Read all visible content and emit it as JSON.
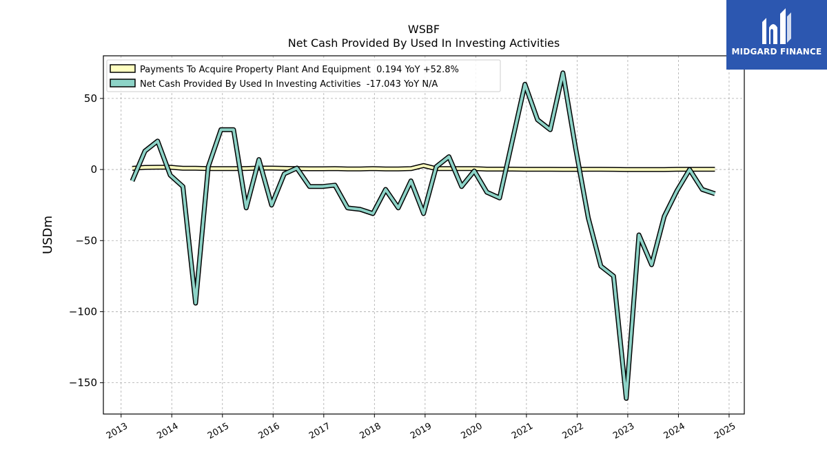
{
  "chart_data": {
    "type": "line",
    "title": "WSBF",
    "subtitle": "Net Cash Provided By Used In Investing Activities",
    "ylabel": "USDm",
    "xlabel": "",
    "xlim": [
      2012.65,
      2025.3
    ],
    "ylim": [
      -172,
      80
    ],
    "x_ticks": [
      2013,
      2014,
      2015,
      2016,
      2017,
      2018,
      2019,
      2020,
      2021,
      2022,
      2023,
      2024,
      2025
    ],
    "y_ticks": [
      -150,
      -100,
      -50,
      0,
      50
    ],
    "y_tick_labels": [
      "−150",
      "−100",
      "−50",
      "0",
      "50"
    ],
    "grid": true,
    "legend_position": "top-left",
    "series": [
      {
        "name": "Payments To Acquire Property Plant And Equipment  0.194 YoY +52.8%",
        "color": "#ffffc0",
        "x": [
          2013.22,
          2013.47,
          2013.72,
          2013.97,
          2014.22,
          2014.47,
          2014.72,
          2014.97,
          2015.22,
          2015.47,
          2015.72,
          2015.97,
          2016.22,
          2016.47,
          2016.72,
          2016.97,
          2017.22,
          2017.47,
          2017.72,
          2017.97,
          2018.22,
          2018.47,
          2018.72,
          2018.97,
          2019.22,
          2019.47,
          2019.72,
          2019.97,
          2020.22,
          2020.47,
          2020.72,
          2020.97,
          2021.22,
          2021.47,
          2021.72,
          2021.97,
          2022.22,
          2022.47,
          2022.72,
          2022.97,
          2023.22,
          2023.47,
          2023.72,
          2023.97,
          2024.22,
          2024.47,
          2024.72
        ],
        "values": [
          0.8,
          1.5,
          1.6,
          1.6,
          0.9,
          0.9,
          0.6,
          0.6,
          0.6,
          0.7,
          1.0,
          1.0,
          0.8,
          0.6,
          0.5,
          0.5,
          0.6,
          0.4,
          0.4,
          0.6,
          0.4,
          0.4,
          0.6,
          2.8,
          0.6,
          0.6,
          0.6,
          0.6,
          0.3,
          0.3,
          0.3,
          0.2,
          0.2,
          0.2,
          0.1,
          0.1,
          0.2,
          0.2,
          0.1,
          0.0,
          0.0,
          0.0,
          0.0,
          0.2,
          0.2,
          0.2,
          0.194
        ]
      },
      {
        "name": "Net Cash Provided By Used In Investing Activities  -17.043 YoY N/A",
        "color": "#8dd3c7",
        "x": [
          2013.22,
          2013.47,
          2013.72,
          2013.97,
          2014.22,
          2014.47,
          2014.72,
          2014.97,
          2015.22,
          2015.47,
          2015.72,
          2015.97,
          2016.22,
          2016.47,
          2016.72,
          2016.97,
          2017.22,
          2017.47,
          2017.72,
          2017.97,
          2018.22,
          2018.47,
          2018.72,
          2018.97,
          2019.22,
          2019.47,
          2019.72,
          2019.97,
          2020.22,
          2020.47,
          2020.72,
          2020.97,
          2021.22,
          2021.47,
          2021.72,
          2021.97,
          2022.22,
          2022.47,
          2022.72,
          2022.97,
          2023.22,
          2023.47,
          2023.72,
          2023.97,
          2024.22,
          2024.47,
          2024.72
        ],
        "values": [
          -8,
          13,
          20,
          -4,
          -12,
          -94,
          2,
          28,
          28,
          -27,
          7,
          -25,
          -3,
          1,
          -12,
          -12,
          -11,
          -27,
          -28,
          -31,
          -14,
          -27,
          -8,
          -31,
          2,
          9,
          -12,
          -1,
          -16,
          -20,
          20,
          60,
          35,
          28,
          68,
          15,
          -34,
          -68,
          -75,
          -161,
          -46,
          -67,
          -33,
          -15,
          0,
          -14,
          -17.043
        ]
      }
    ]
  },
  "brand": {
    "name": "MIDGARD FINANCE",
    "bg_color": "#2c57b0"
  }
}
